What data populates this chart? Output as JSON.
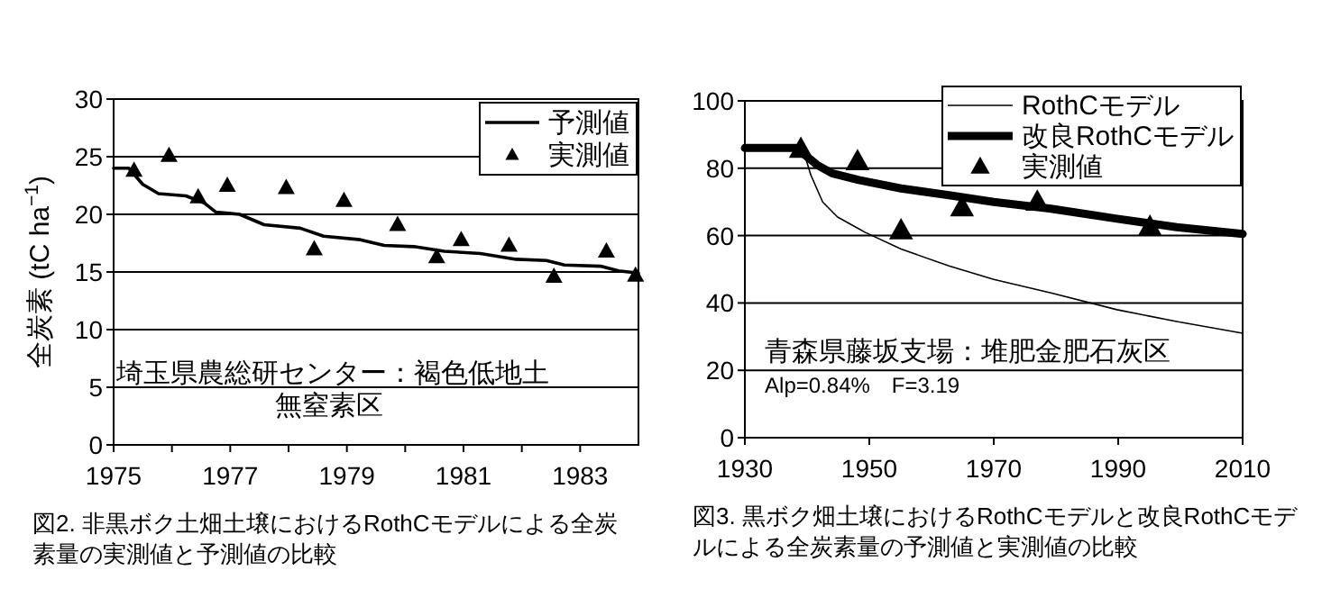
{
  "chart_data": [
    {
      "type": "line",
      "title": "図2. 非黒ボク土畑土壌におけるRothCモデルによる全炭素量の実測値と予測値の比較",
      "ylabel": "全炭素 (tC ha$^{−1}$)",
      "xlim": [
        1975,
        1984
      ],
      "xticks": [
        1975,
        {
          "value": 1976,
          "label": null
        },
        1977,
        {
          "value": 1978,
          "label": null
        },
        1979,
        {
          "value": 1980,
          "label": null
        },
        1981,
        {
          "value": 1982,
          "label": null
        },
        1983
      ],
      "ylim": [
        0,
        30
      ],
      "yticks": [
        0,
        5,
        10,
        15,
        20,
        25,
        30
      ],
      "grid": "y",
      "legend": "top right",
      "annotations": [
        "埼玉県農総研センター：褐色低地土",
        "無窒素区"
      ],
      "series": [
        {
          "name": "予測値",
          "type": "line",
          "color": "#000000",
          "x": [
            1975,
            1975.26,
            1975.5,
            1975.77,
            1976.24,
            1976.55,
            1976.75,
            1977.16,
            1977.58,
            1978.2,
            1978.6,
            1979.23,
            1979.64,
            1980.15,
            1980.67,
            1981.29,
            1981.9,
            1982.42,
            1982.73,
            1983.35,
            1983.66,
            1984
          ],
          "values": [
            24,
            24,
            22.6,
            21.8,
            21.6,
            21,
            20.2,
            20,
            19.1,
            18.8,
            18.1,
            17.8,
            17.3,
            17.2,
            16.8,
            16.6,
            16.1,
            16,
            15.6,
            15.5,
            15.1,
            14.9
          ]
        },
        {
          "name": "実測値",
          "type": "scatter",
          "marker": "triangle",
          "color": "#000000",
          "x": [
            1975.35,
            1975.95,
            1976.45,
            1976.95,
            1977.96,
            1978.44,
            1978.95,
            1979.87,
            1980.54,
            1980.96,
            1981.78,
            1982.55,
            1983.45,
            1983.95
          ],
          "values": [
            23.8,
            25.1,
            21.5,
            22.5,
            22.3,
            17,
            21.2,
            19.1,
            16.3,
            17.8,
            17.3,
            14.6,
            16.8,
            14.7
          ]
        }
      ]
    },
    {
      "type": "line",
      "title": "図3. 黒ボク畑土壌におけるRothCモデルと改良RothCモデルによる全炭素量の予測値と実測値の比較",
      "xlim": [
        1930,
        2010
      ],
      "xticks": [
        1930,
        1950,
        1970,
        1990,
        2010
      ],
      "ylim": [
        0,
        100
      ],
      "yticks": [
        0,
        20,
        40,
        60,
        80,
        100
      ],
      "grid": "y",
      "legend": "top right",
      "annotations": [
        "青森県藤坂支場：堆肥金肥石灰区",
        "Alp=0.84%　F=3.19"
      ],
      "series": [
        {
          "name": "RothCモデル",
          "type": "line",
          "color": "#000000",
          "x": [
            1930,
            1938.2,
            1939.6,
            1940.6,
            1942.5,
            1944.9,
            1949.3,
            1955.1,
            1962.8,
            1970,
            1979.2,
            1989.8,
            1999.4,
            2010
          ],
          "values": [
            86,
            86,
            84,
            78,
            70,
            65.5,
            61,
            56,
            51,
            47,
            43,
            38,
            34.5,
            31
          ]
        },
        {
          "name": "改良RothCモデル",
          "type": "line",
          "color": "#000000",
          "x": [
            1930,
            1938.2,
            1939.6,
            1941.6,
            1944,
            1948.3,
            1955.1,
            1962.8,
            1970,
            1979.2,
            1989.8,
            1999.4,
            2010
          ],
          "values": [
            86,
            86,
            84,
            81,
            78.5,
            76.5,
            74,
            72,
            70,
            68,
            65,
            62.5,
            60.5
          ]
        },
        {
          "name": "実測値",
          "type": "scatter",
          "marker": "triangle",
          "color": "#000000",
          "x": [
            1939,
            1948.1,
            1955.1,
            1964.9,
            1977,
            1995.1
          ],
          "values": [
            85.7,
            82,
            61.5,
            68.3,
            70,
            62.6
          ]
        }
      ]
    }
  ]
}
